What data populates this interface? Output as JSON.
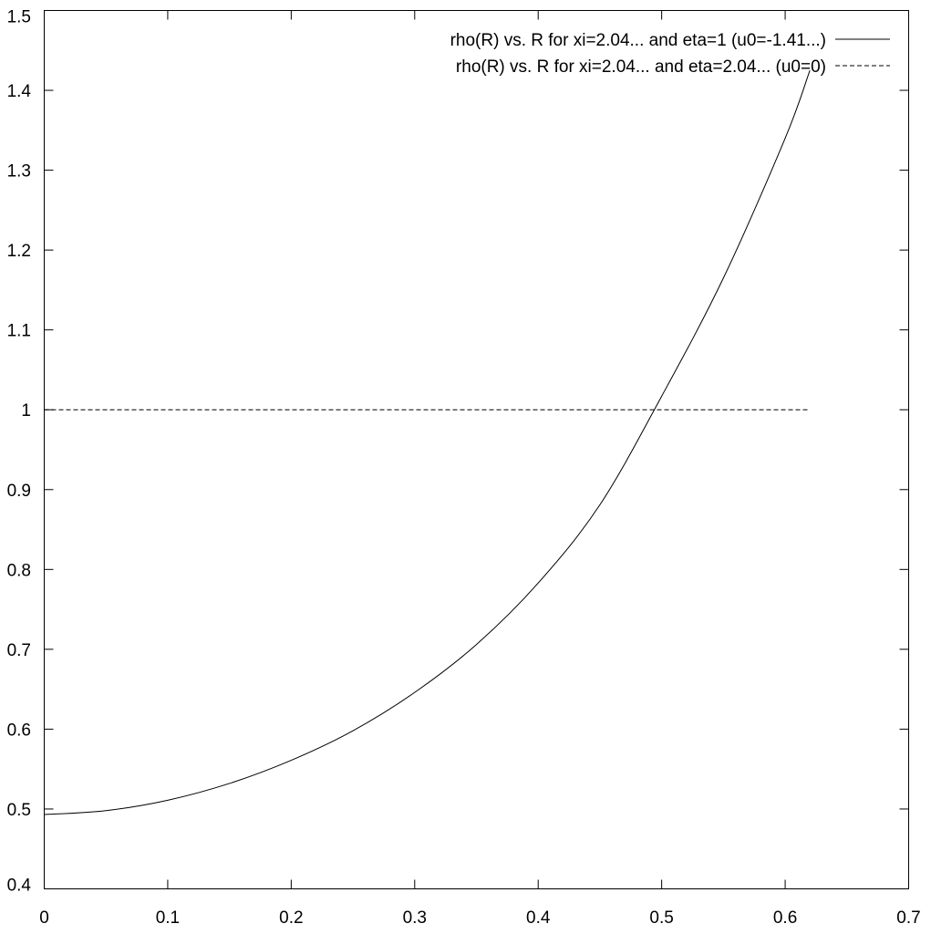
{
  "chart_data": {
    "type": "line",
    "title": "",
    "xlabel": "",
    "ylabel": "",
    "xlim": [
      0,
      0.7
    ],
    "ylim": [
      0.4,
      1.5
    ],
    "x_ticks": [
      0,
      0.1,
      0.2,
      0.3,
      0.4,
      0.5,
      0.6,
      0.7
    ],
    "y_ticks": [
      0.4,
      0.5,
      0.6,
      0.7,
      0.8,
      0.9,
      1.0,
      1.1,
      1.2,
      1.3,
      1.4,
      1.5
    ],
    "x_tick_labels": [
      "0",
      "0.1",
      "0.2",
      "0.3",
      "0.4",
      "0.5",
      "0.6",
      "0.7"
    ],
    "y_tick_labels": [
      "0.4",
      "0.5",
      "0.6",
      "0.7",
      "0.8",
      "0.9",
      "1",
      "1.1",
      "1.2",
      "1.3",
      "1.4",
      "1.5"
    ],
    "grid": false,
    "legend_position": "top-right",
    "series": [
      {
        "name": "rho(R) vs. R for xi=2.04... and eta=1 (u0=-1.41...)",
        "style": "solid",
        "x": [
          0,
          0.05,
          0.1,
          0.15,
          0.2,
          0.25,
          0.3,
          0.35,
          0.4,
          0.45,
          0.5,
          0.55,
          0.6,
          0.62
        ],
        "y": [
          0.493,
          0.498,
          0.511,
          0.532,
          0.561,
          0.598,
          0.646,
          0.706,
          0.783,
          0.881,
          1.017,
          1.165,
          1.34,
          1.425
        ]
      },
      {
        "name": "rho(R) vs. R for xi=2.04... and eta=2.04... (u0=0)",
        "style": "dashed",
        "x": [
          0,
          0.62
        ],
        "y": [
          1.0,
          1.0
        ]
      }
    ]
  }
}
